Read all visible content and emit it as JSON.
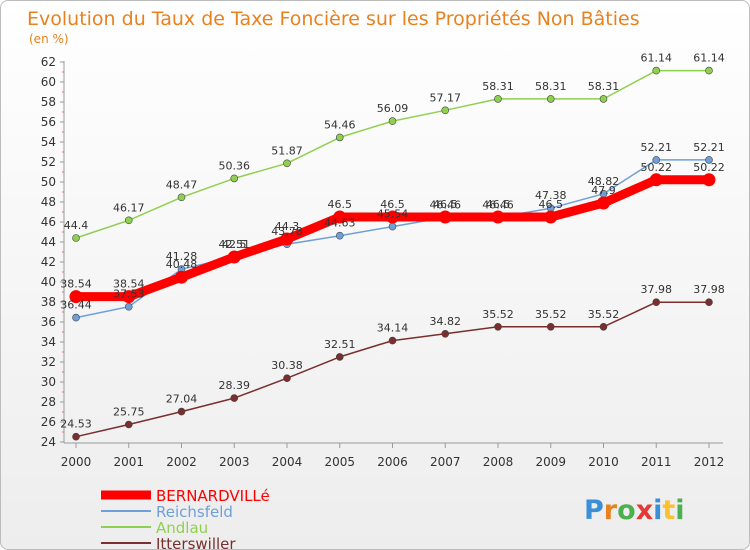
{
  "chart_data": {
    "type": "line",
    "title": "Evolution du Taux de Taxe Foncière sur les Propriétés Non Bâties",
    "subtitle": "(en %)",
    "xlabel": "",
    "ylabel": "",
    "ylim": [
      24,
      62
    ],
    "yticks": [
      24,
      26,
      28,
      30,
      32,
      34,
      36,
      38,
      40,
      42,
      44,
      46,
      48,
      50,
      52,
      54,
      56,
      58,
      60,
      62
    ],
    "grid": false,
    "legend_position": "bottom-left",
    "categories": [
      "2000",
      "2001",
      "2002",
      "2003",
      "2004",
      "2005",
      "2006",
      "2007",
      "2008",
      "2009",
      "2010",
      "2011",
      "2012"
    ],
    "series": [
      {
        "name": "BERNARDVILLé",
        "color": "#ff0000",
        "values": [
          38.54,
          38.54,
          40.48,
          42.5,
          44.3,
          46.5,
          46.5,
          46.5,
          46.5,
          46.5,
          47.9,
          50.22,
          50.22
        ],
        "labels": [
          "38.54",
          "38.54",
          "40.48",
          "42.5",
          "44.3",
          "46.5",
          "46.5",
          "46.5",
          "46.5",
          "46.5",
          "47.9",
          "50.22",
          "50.22"
        ]
      },
      {
        "name": "Reichsfeld",
        "color": "#6f9fd8",
        "values": [
          36.44,
          37.53,
          41.28,
          42.51,
          43.78,
          44.63,
          45.54,
          46.46,
          46.46,
          47.38,
          48.82,
          52.21,
          52.21
        ],
        "labels": [
          "36.44",
          "37.53",
          "41.28",
          "42.51",
          "43.78",
          "44.63",
          "45.54",
          "46.46",
          "46.46",
          "47.38",
          "48.82",
          "52.21",
          "52.21"
        ]
      },
      {
        "name": "Andlau",
        "color": "#90d050",
        "values": [
          44.4,
          46.17,
          48.47,
          50.36,
          51.87,
          54.46,
          56.09,
          57.17,
          58.31,
          58.31,
          58.31,
          61.14,
          61.14
        ],
        "labels": [
          "44.4",
          "46.17",
          "48.47",
          "50.36",
          "51.87",
          "54.46",
          "56.09",
          "57.17",
          "58.31",
          "58.31",
          "58.31",
          "61.14",
          "61.14"
        ]
      },
      {
        "name": "Itterswiller",
        "color": "#7a2e2e",
        "values": [
          24.53,
          25.75,
          27.04,
          28.39,
          30.38,
          32.51,
          34.14,
          34.82,
          35.52,
          35.52,
          35.52,
          37.98,
          37.98
        ],
        "labels": [
          "24.53",
          "25.75",
          "27.04",
          "28.39",
          "30.38",
          "32.51",
          "34.14",
          "34.82",
          "35.52",
          "35.52",
          "35.52",
          "37.98",
          "37.98"
        ]
      }
    ]
  },
  "logo": {
    "letters": [
      "P",
      "r",
      "o",
      "x",
      "i",
      "t",
      "i"
    ],
    "colors": [
      "#3a8fd6",
      "#e8811e",
      "#4caf50",
      "#e53935",
      "#3a8fd6",
      "#fbc02d",
      "#4caf50"
    ]
  }
}
